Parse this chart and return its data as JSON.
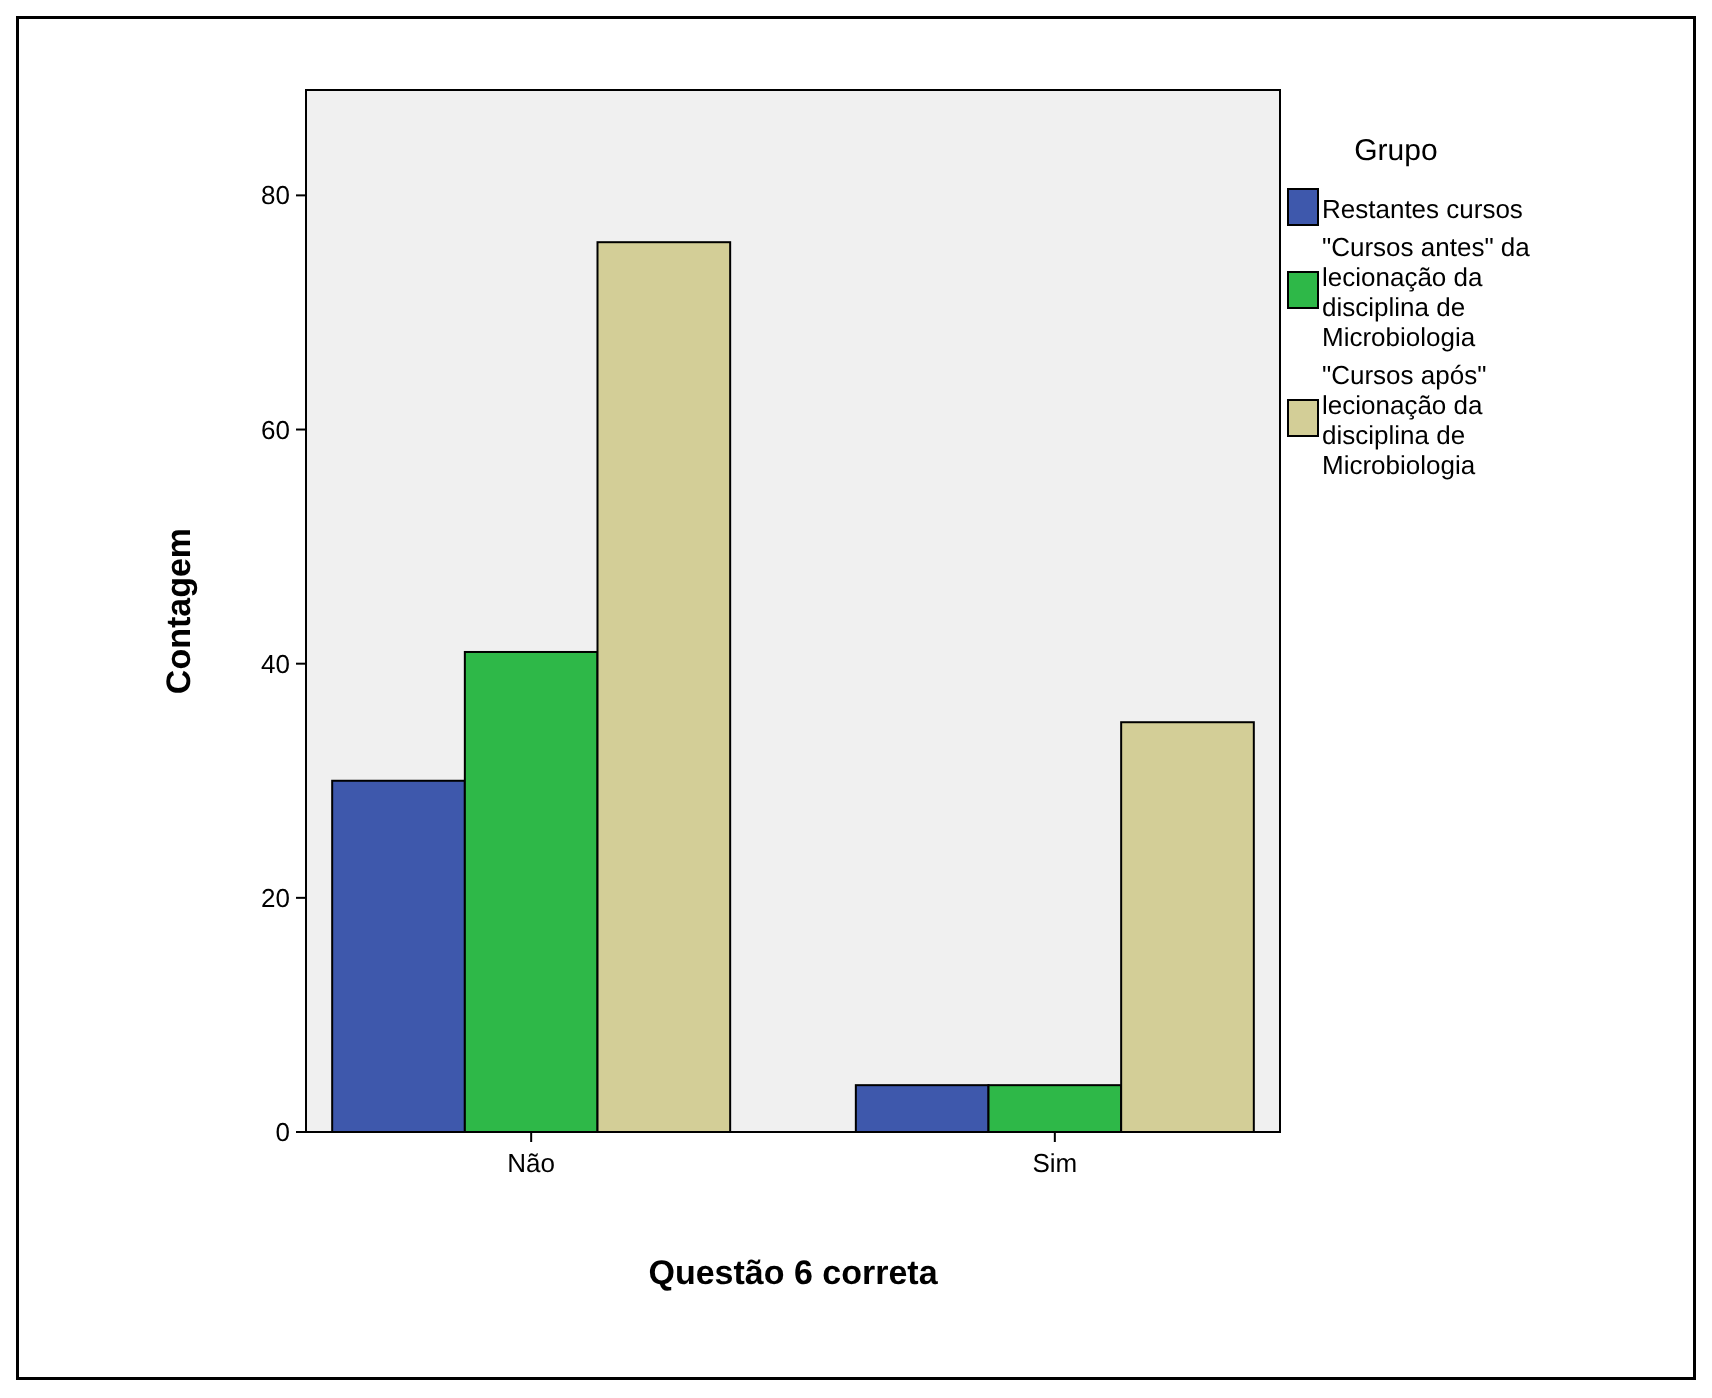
{
  "chart_data": {
    "type": "bar",
    "xlabel": "Questão 6 correta",
    "ylabel": "Contagem",
    "legend_title": "Grupo",
    "legend": "right",
    "categories": [
      "Não",
      "Sim"
    ],
    "ylim": [
      0,
      89
    ],
    "yticks": [
      0,
      20,
      40,
      60,
      80
    ],
    "series": [
      {
        "name": "Restantes cursos",
        "color": "#3e58ac",
        "values": [
          30,
          4
        ]
      },
      {
        "name": "\"Cursos antes\" da lecionação da disciplina de Microbiologia",
        "color": "#2eb848",
        "values": [
          41,
          4
        ]
      },
      {
        "name": "\"Cursos após\" lecionação da disciplina de Microbiologia",
        "color": "#d3ce97",
        "values": [
          76,
          35
        ]
      }
    ]
  }
}
